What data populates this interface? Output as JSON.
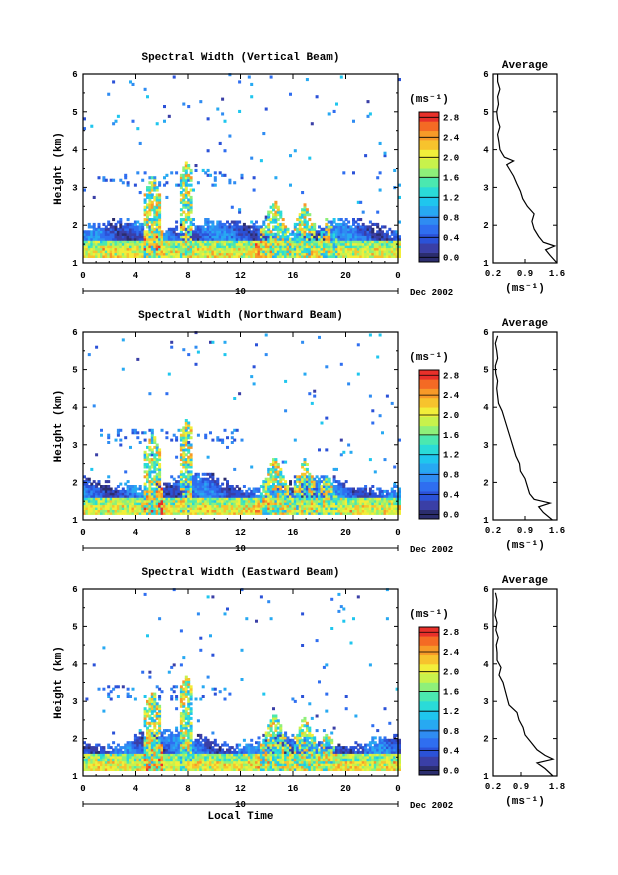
{
  "colorbar": {
    "unit": "(ms⁻¹)",
    "tick_labels": [
      "0.0",
      "0.4",
      "0.8",
      "1.2",
      "1.6",
      "2.0",
      "2.4",
      "2.8"
    ],
    "colors": [
      "#2b2d6e",
      "#3a3fa6",
      "#2b52d8",
      "#2f6ef0",
      "#2f8cf2",
      "#27a9f2",
      "#1fc6ee",
      "#2adbd8",
      "#4be8b0",
      "#8ef07a",
      "#c8f24c",
      "#f2ee3a",
      "#f7c32d",
      "#f79a28",
      "#f46a24",
      "#e8302a"
    ],
    "vmin": 0.0,
    "vmax": 3.0
  },
  "chart_data": [
    {
      "type": "heatmap",
      "title": "Spectral Width (Vertical Beam)",
      "ylabel": "Height (km)",
      "ylim": [
        1,
        6
      ],
      "y_ticks": [
        "1",
        "2",
        "3",
        "4",
        "5",
        "6"
      ],
      "xlim": [
        0,
        24
      ],
      "x_ticks": [
        "0",
        "4",
        "8",
        "12",
        "16",
        "20",
        "0"
      ],
      "date_bar_label": "10",
      "date_label": "Dec 2002",
      "avg_panel": {
        "title": "Average",
        "xlabel": "(ms⁻¹)",
        "x_ticks": [
          "0.2",
          "0.9",
          "1.6"
        ],
        "xlim": [
          0.2,
          1.6
        ],
        "ylim": [
          1,
          6
        ],
        "y_ticks": [
          "1",
          "2",
          "3",
          "4",
          "5",
          "6"
        ],
        "profile": {
          "height": [
            1.0,
            1.2,
            1.35,
            1.45,
            1.55,
            1.7,
            1.9,
            2.1,
            2.3,
            2.5,
            2.7,
            2.9,
            3.1,
            3.3,
            3.5,
            3.6,
            3.7,
            3.8,
            3.9,
            4.0,
            4.2,
            4.4,
            4.6,
            4.8,
            5.0,
            5.2,
            5.4,
            5.6,
            5.8,
            6.0
          ],
          "value": [
            1.6,
            1.45,
            1.35,
            1.55,
            1.3,
            1.2,
            1.1,
            1.05,
            1.1,
            0.95,
            0.85,
            0.8,
            0.72,
            0.65,
            0.55,
            0.5,
            0.65,
            0.45,
            0.4,
            0.35,
            0.33,
            0.3,
            0.35,
            0.3,
            0.28,
            0.32,
            0.3,
            0.35,
            0.3,
            0.3
          ]
        }
      }
    },
    {
      "type": "heatmap",
      "title": "Spectral Width (Northward Beam)",
      "ylabel": "Height (km)",
      "ylim": [
        1,
        6
      ],
      "y_ticks": [
        "1",
        "2",
        "3",
        "4",
        "5",
        "6"
      ],
      "xlim": [
        0,
        24
      ],
      "x_ticks": [
        "0",
        "4",
        "8",
        "12",
        "16",
        "20",
        "0"
      ],
      "date_bar_label": "10",
      "date_label": "Dec 2002",
      "avg_panel": {
        "title": "Average",
        "xlabel": "(ms⁻¹)",
        "x_ticks": [
          "0.2",
          "0.9",
          "1.6"
        ],
        "xlim": [
          0.2,
          1.6
        ],
        "ylim": [
          1,
          6
        ],
        "y_ticks": [
          "1",
          "2",
          "3",
          "4",
          "5",
          "6"
        ],
        "profile": {
          "height": [
            1.0,
            1.2,
            1.35,
            1.45,
            1.55,
            1.7,
            1.9,
            2.1,
            2.3,
            2.5,
            2.7,
            2.9,
            3.1,
            3.3,
            3.5,
            3.7,
            3.9,
            4.1,
            4.3,
            4.5,
            4.7,
            4.9,
            5.1,
            5.3,
            5.5,
            5.7,
            5.9
          ],
          "value": [
            1.5,
            1.3,
            1.2,
            1.45,
            1.1,
            1.0,
            0.95,
            0.9,
            0.8,
            0.78,
            0.7,
            0.65,
            0.6,
            0.55,
            0.5,
            0.45,
            0.4,
            0.32,
            0.3,
            0.28,
            0.3,
            0.26,
            0.25,
            0.3,
            0.28,
            0.25,
            0.3
          ]
        }
      }
    },
    {
      "type": "heatmap",
      "title": "Spectral Width (Eastward Beam)",
      "ylabel": "Height (km)",
      "xlabel": "Local Time",
      "ylim": [
        1,
        6
      ],
      "y_ticks": [
        "1",
        "2",
        "3",
        "4",
        "5",
        "6"
      ],
      "xlim": [
        0,
        24
      ],
      "x_ticks": [
        "0",
        "4",
        "8",
        "12",
        "16",
        "20",
        "0"
      ],
      "date_bar_label": "10",
      "date_label": "Dec 2002",
      "avg_panel": {
        "title": "Average",
        "xlabel": "(ms⁻¹)",
        "x_ticks": [
          "0.2",
          "0.9",
          "1.8"
        ],
        "xlim": [
          0.2,
          1.8
        ],
        "ylim": [
          1,
          6
        ],
        "y_ticks": [
          "1",
          "2",
          "3",
          "4",
          "5",
          "6"
        ],
        "profile": {
          "height": [
            1.0,
            1.2,
            1.35,
            1.45,
            1.55,
            1.7,
            1.9,
            2.1,
            2.3,
            2.5,
            2.7,
            2.9,
            3.1,
            3.3,
            3.5,
            3.7,
            3.9,
            4.1,
            4.3,
            4.5,
            4.7,
            4.9,
            5.1,
            5.3,
            5.5,
            5.7,
            5.9
          ],
          "value": [
            1.7,
            1.5,
            1.3,
            1.7,
            1.5,
            1.3,
            1.15,
            1.0,
            0.95,
            0.85,
            0.8,
            0.6,
            0.55,
            0.5,
            0.45,
            0.35,
            0.4,
            0.3,
            0.3,
            0.28,
            0.33,
            0.27,
            0.3,
            0.25,
            0.28,
            0.3,
            0.26
          ]
        }
      }
    }
  ]
}
